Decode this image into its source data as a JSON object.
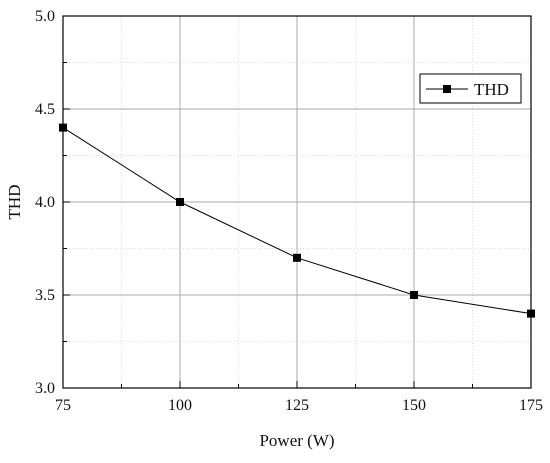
{
  "chart_data": {
    "type": "line",
    "title": "",
    "xlabel": "Power (W)",
    "ylabel": "THD",
    "xlim": [
      75,
      175
    ],
    "ylim": [
      3.0,
      5.0
    ],
    "x_ticks": [
      75,
      100,
      125,
      150,
      175
    ],
    "x_tick_labels": [
      "75",
      "100",
      "125",
      "150",
      "175"
    ],
    "y_ticks": [
      3.0,
      3.5,
      4.0,
      4.5,
      5.0
    ],
    "y_tick_labels": [
      "3.0",
      "3.5",
      "4.0",
      "4.5",
      "5.0"
    ],
    "grid": true,
    "legend_position": "top-right",
    "series": [
      {
        "name": "THD",
        "color": "#000000",
        "marker": "square",
        "x": [
          75,
          100,
          125,
          150,
          175
        ],
        "values": [
          4.4,
          4.0,
          3.7,
          3.5,
          3.4
        ]
      }
    ]
  }
}
